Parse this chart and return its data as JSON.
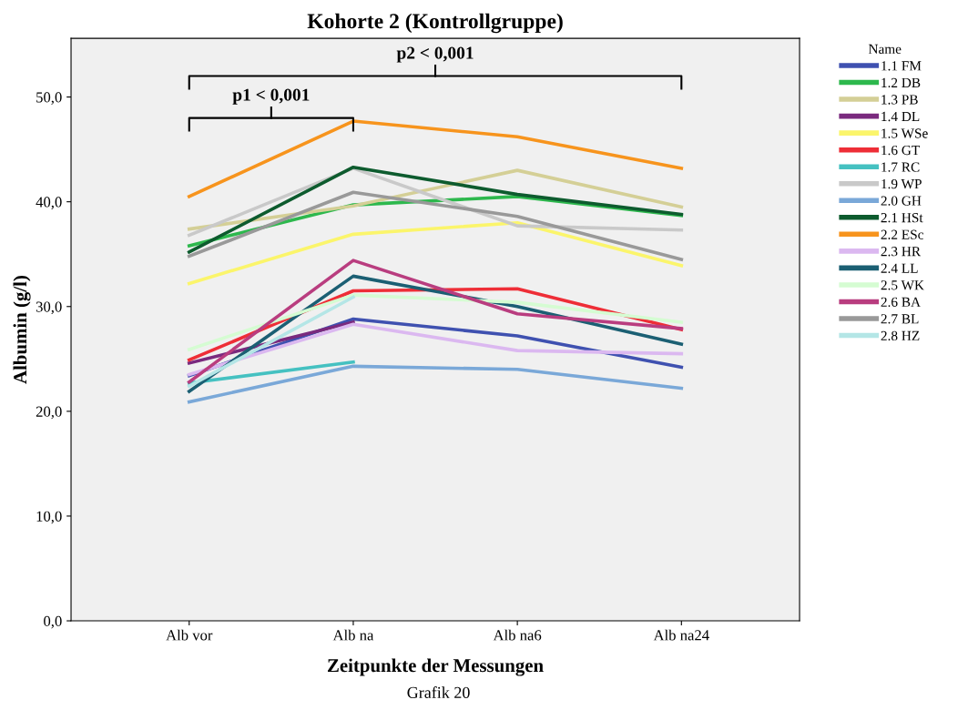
{
  "chart_data": {
    "type": "line",
    "title": "Kohorte 2 (Kontrollgruppe)",
    "xlabel": "Zeitpunkte der Messungen",
    "ylabel": "Albumin (g/l)",
    "legend_title": "Name",
    "legend": "right",
    "grid": false,
    "marker": "none",
    "line_style": "solid",
    "categories": [
      "Alb vor",
      "Alb na",
      "Alb na6",
      "Alb na24"
    ],
    "ylim": [
      0,
      55.6
    ],
    "yticks": [
      {
        "value": 0,
        "label": "0,0"
      },
      {
        "value": 10,
        "label": "10,0"
      },
      {
        "value": 20,
        "label": "20,0"
      },
      {
        "value": 30,
        "label": "30,0"
      },
      {
        "value": 40,
        "label": "40,0"
      },
      {
        "value": 50,
        "label": "50,0"
      }
    ],
    "series": [
      {
        "name": "1.1 FM",
        "color": "#3f51b0",
        "values": [
          23.4,
          28.8,
          27.2,
          24.2
        ]
      },
      {
        "name": "1.2 DB",
        "color": "#2db84d",
        "values": [
          35.8,
          39.7,
          40.5,
          38.7
        ]
      },
      {
        "name": "1.3 PB",
        "color": "#d4cf96",
        "values": [
          37.4,
          39.6,
          43.0,
          39.5
        ]
      },
      {
        "name": "1.4 DL",
        "color": "#7a2a7e",
        "values": [
          24.6,
          28.5,
          null,
          null
        ]
      },
      {
        "name": "1.5 WSe",
        "color": "#fbf56b",
        "values": [
          32.2,
          36.9,
          38.0,
          33.9
        ]
      },
      {
        "name": "1.6 GT",
        "color": "#ee2e37",
        "values": [
          24.9,
          31.5,
          31.7,
          27.8
        ]
      },
      {
        "name": "1.7 RC",
        "color": "#45c1c1",
        "values": [
          22.7,
          24.7,
          null,
          null
        ]
      },
      {
        "name": "1.9 WP",
        "color": "#c9c9c9",
        "values": [
          36.8,
          43.2,
          37.7,
          37.3
        ]
      },
      {
        "name": "2.0 GH",
        "color": "#7aa8d8",
        "values": [
          20.9,
          24.3,
          24.0,
          22.2
        ]
      },
      {
        "name": "2.1 HSt",
        "color": "#0d5b2e",
        "values": [
          35.2,
          43.3,
          40.7,
          38.8
        ]
      },
      {
        "name": "2.2 ESc",
        "color": "#f7941d",
        "values": [
          40.5,
          47.7,
          46.2,
          43.2
        ]
      },
      {
        "name": "2.3 HR",
        "color": "#dbb8f0",
        "values": [
          23.5,
          28.3,
          25.8,
          25.5
        ]
      },
      {
        "name": "2.4 LL",
        "color": "#1b5f73",
        "values": [
          21.9,
          32.9,
          30.0,
          26.4
        ]
      },
      {
        "name": "2.5 WK",
        "color": "#d5fcd2",
        "values": [
          25.9,
          31.1,
          30.4,
          28.5
        ]
      },
      {
        "name": "2.6 BA",
        "color": "#b93d7f",
        "values": [
          22.8,
          34.4,
          29.3,
          27.9
        ]
      },
      {
        "name": "2.7 BL",
        "color": "#999999",
        "values": [
          34.8,
          40.9,
          38.6,
          34.5
        ]
      },
      {
        "name": "2.8 HZ",
        "color": "#b4e6e6",
        "values": [
          22.4,
          30.9,
          null,
          null
        ]
      }
    ],
    "annotations": [
      "p2 < 0,001",
      "p1 < 0,001",
      "Grafik 20"
    ]
  }
}
